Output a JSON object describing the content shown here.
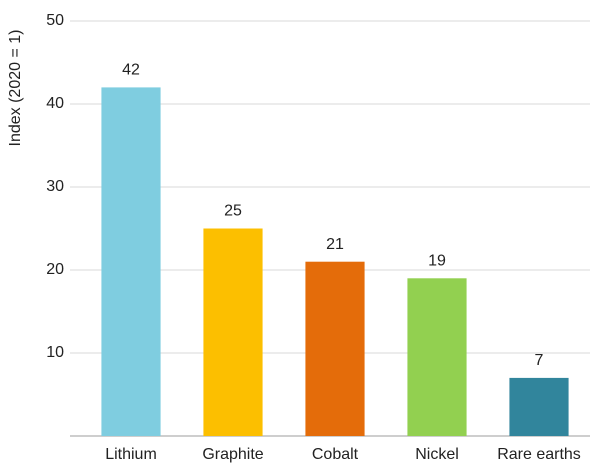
{
  "chart_data": {
    "type": "bar",
    "y_label": "Index (2020 = 1)",
    "categories": [
      "Lithium",
      "Graphite",
      "Cobalt",
      "Nickel",
      "Rare earths"
    ],
    "values": [
      42,
      25,
      21,
      19,
      7
    ],
    "colors": [
      "#7fcde0",
      "#fcbf00",
      "#e46c0a",
      "#92d050",
      "#31859c"
    ],
    "ylim": [
      0,
      50
    ],
    "yticks": [
      10,
      20,
      30,
      40,
      50
    ],
    "grid": true,
    "data_labels": true
  }
}
